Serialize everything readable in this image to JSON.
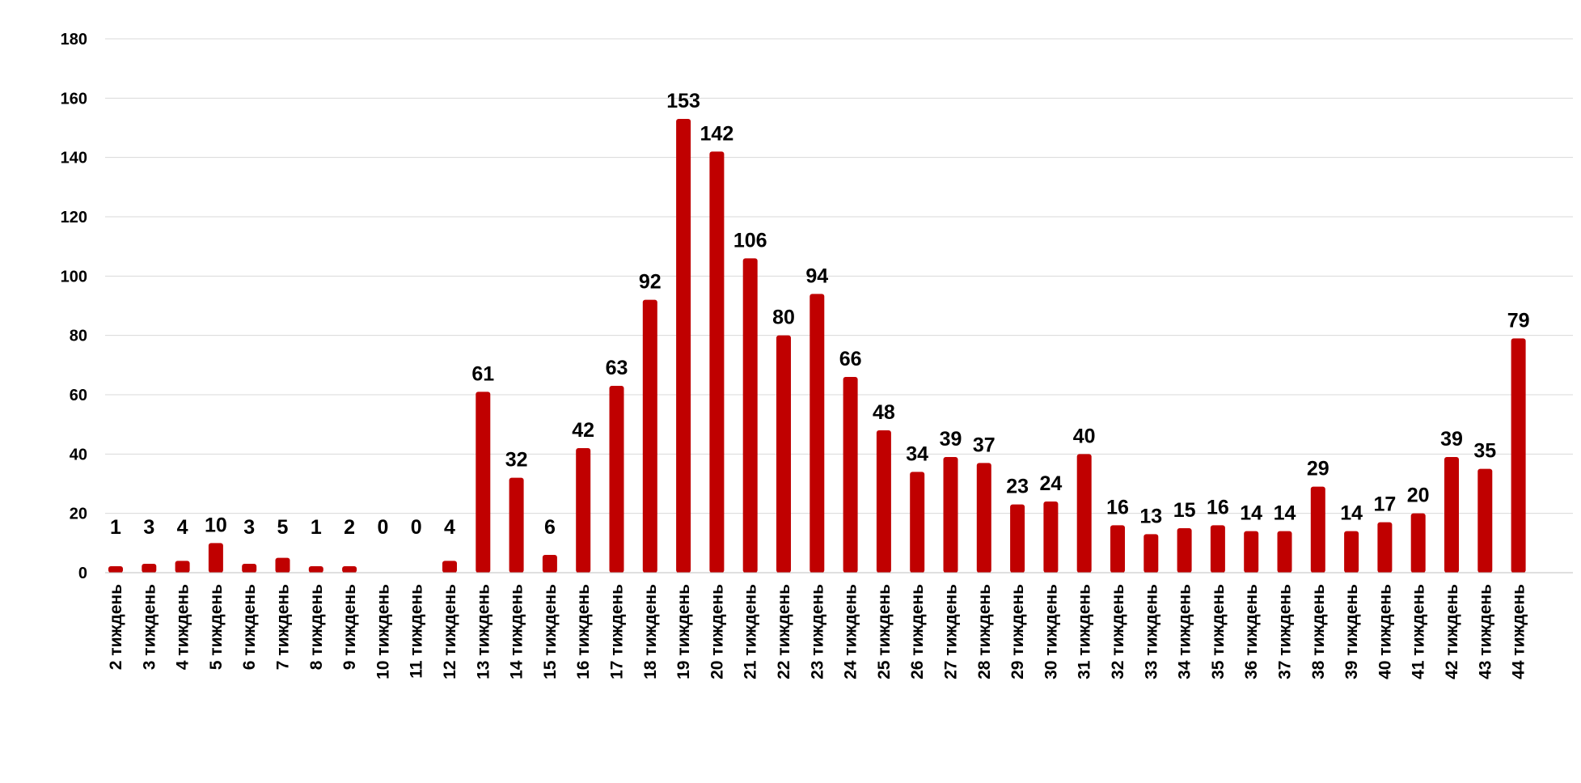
{
  "chart_data": {
    "type": "bar",
    "title": "",
    "xlabel": "",
    "ylabel": "",
    "ylim": [
      0,
      180
    ],
    "yticks": [
      0,
      20,
      40,
      60,
      80,
      100,
      120,
      140,
      160,
      180
    ],
    "grid": true,
    "legend": "none",
    "bar_color": "#c00000",
    "categories": [
      "2 тиждень",
      "3 тиждень",
      "4 тиждень",
      "5 тиждень",
      "6 тиждень",
      "7 тиждень",
      "8 тиждень",
      "9 тиждень",
      "10 тиждень",
      "11 тиждень",
      "12 тиждень",
      "13 тиждень",
      "14 тиждень",
      "15 тиждень",
      "16 тиждень",
      "17 тиждень",
      "18 тиждень",
      "19 тиждень",
      "20 тиждень",
      "21 тиждень",
      "22 тиждень",
      "23 тиждень",
      "24 тиждень",
      "25 тиждень",
      "26 тиждень",
      "27 тиждень",
      "28 тиждень",
      "29 тиждень",
      "30 тиждень",
      "31 тиждень",
      "32 тиждень",
      "33 тиждень",
      "34 тиждень",
      "35 тиждень",
      "36 тиждень",
      "37 тиждень",
      "38 тиждень",
      "39 тиждень",
      "40 тиждень",
      "41 тиждень",
      "42 тиждень",
      "43 тиждень",
      "44 тиждень"
    ],
    "values": [
      1,
      3,
      4,
      10,
      3,
      5,
      1,
      2,
      0,
      0,
      4,
      61,
      32,
      6,
      42,
      63,
      92,
      153,
      142,
      106,
      80,
      94,
      66,
      48,
      34,
      39,
      37,
      23,
      24,
      40,
      16,
      13,
      15,
      16,
      14,
      14,
      29,
      14,
      17,
      20,
      39,
      35,
      79
    ]
  }
}
